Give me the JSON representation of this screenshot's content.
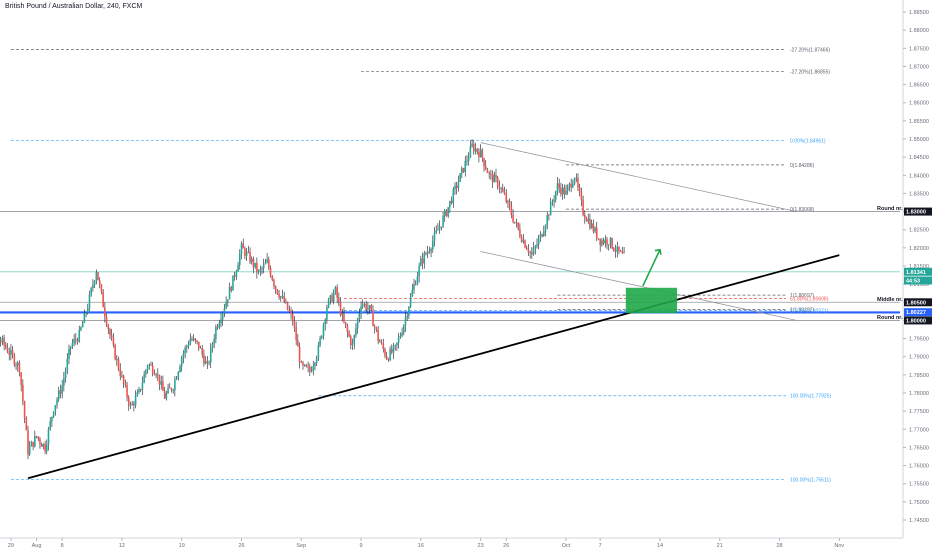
{
  "header": {
    "title": "British Pound / Australian Dollar, 240, FXCM"
  },
  "colors": {
    "up": "#26a69a",
    "down": "#ef5350",
    "wick": "#131722",
    "blue": "#2962ff",
    "fib": "#42a5f5",
    "red": "#ef5350",
    "green": "#26a69a",
    "gray": "#787b86",
    "trend": "#000000",
    "zone": "#1fa84a",
    "arrow": "#1fa84a"
  },
  "chart_data": {
    "type": "candlestick",
    "title": "British Pound / Australian Dollar, 240, FXCM",
    "ylim": [
      1.7404,
      1.8904
    ],
    "y_ticks": [
      "1.88500",
      "1.88000",
      "1.87500",
      "1.87000",
      "1.86500",
      "1.86000",
      "1.85500",
      "1.85000",
      "1.84500",
      "1.84000",
      "1.83500",
      "1.83000",
      "1.82500",
      "1.82000",
      "1.81500",
      "1.81000",
      "1.80500",
      "1.80000",
      "1.79500",
      "1.79000",
      "1.78500",
      "1.78000",
      "1.77500",
      "1.77000",
      "1.76500",
      "1.76000",
      "1.75500",
      "1.75000",
      "1.74500"
    ],
    "y_tick_values": [
      1.885,
      1.88,
      1.875,
      1.87,
      1.865,
      1.86,
      1.855,
      1.85,
      1.845,
      1.84,
      1.835,
      1.83,
      1.825,
      1.82,
      1.815,
      1.81,
      1.805,
      1.8,
      1.795,
      1.79,
      1.785,
      1.78,
      1.775,
      1.77,
      1.765,
      1.76,
      1.755,
      1.75,
      1.745
    ],
    "x_ticks": [
      "29",
      "Aug",
      "8",
      "12",
      "19",
      "26",
      "Sep",
      "9",
      "16",
      "23",
      "26",
      "Oct",
      "7",
      "14",
      "21",
      "28",
      "Nov"
    ],
    "x_tick_days": [
      -2,
      1,
      4,
      11,
      18,
      25,
      32,
      39,
      46,
      53,
      56,
      63,
      67,
      74,
      81,
      88,
      95
    ],
    "price_path": [
      [
        -7,
        1.793
      ],
      [
        -5,
        1.796
      ],
      [
        -3,
        1.794
      ],
      [
        -1,
        1.787
      ],
      [
        0,
        1.764
      ],
      [
        1,
        1.768
      ],
      [
        2,
        1.765
      ],
      [
        3,
        1.776
      ],
      [
        4,
        1.782
      ],
      [
        5,
        1.793
      ],
      [
        6,
        1.796
      ],
      [
        7,
        1.804
      ],
      [
        8,
        1.814
      ],
      [
        9,
        1.802
      ],
      [
        10,
        1.792
      ],
      [
        11,
        1.784
      ],
      [
        12,
        1.776
      ],
      [
        13,
        1.78
      ],
      [
        14,
        1.788
      ],
      [
        15,
        1.786
      ],
      [
        16,
        1.779
      ],
      [
        17,
        1.782
      ],
      [
        18,
        1.79
      ],
      [
        19,
        1.795
      ],
      [
        20,
        1.793
      ],
      [
        21,
        1.787
      ],
      [
        22,
        1.798
      ],
      [
        23,
        1.804
      ],
      [
        24,
        1.811
      ],
      [
        25,
        1.82
      ],
      [
        26,
        1.817
      ],
      [
        27,
        1.813
      ],
      [
        28,
        1.816
      ],
      [
        29,
        1.809
      ],
      [
        30,
        1.805
      ],
      [
        31,
        1.8
      ],
      [
        32,
        1.787
      ],
      [
        33,
        1.786
      ],
      [
        34,
        1.792
      ],
      [
        35,
        1.804
      ],
      [
        36,
        1.808
      ],
      [
        37,
        1.799
      ],
      [
        38,
        1.793
      ],
      [
        39,
        1.805
      ],
      [
        40,
        1.803
      ],
      [
        41,
        1.795
      ],
      [
        42,
        1.79
      ],
      [
        43,
        1.792
      ],
      [
        44,
        1.799
      ],
      [
        45,
        1.808
      ],
      [
        46,
        1.816
      ],
      [
        47,
        1.82
      ],
      [
        48,
        1.825
      ],
      [
        49,
        1.83
      ],
      [
        50,
        1.836
      ],
      [
        51,
        1.842
      ],
      [
        52,
        1.848
      ],
      [
        53,
        1.846
      ],
      [
        54,
        1.84
      ],
      [
        55,
        1.838
      ],
      [
        56,
        1.833
      ],
      [
        57,
        1.827
      ],
      [
        58,
        1.822
      ],
      [
        59,
        1.818
      ],
      [
        60,
        1.823
      ],
      [
        61,
        1.83
      ],
      [
        62,
        1.837
      ],
      [
        63,
        1.835
      ],
      [
        64,
        1.84
      ],
      [
        65,
        1.83
      ],
      [
        66,
        1.826
      ],
      [
        67,
        1.822
      ],
      [
        68,
        1.822
      ],
      [
        69,
        1.819
      ],
      [
        70,
        1.817
      ]
    ],
    "horizontal_lines": [
      {
        "label": "Round nr.",
        "value": 1.83,
        "style": "gray"
      },
      {
        "label": "Middle nr.",
        "value": 1.805,
        "style": "gray"
      },
      {
        "label": "Round nr.",
        "value": 1.8,
        "style": "gray"
      },
      {
        "value": 1.8022,
        "style": "blue-thick"
      },
      {
        "value": 1.8134,
        "style": "green-thin"
      }
    ],
    "fib_levels": [
      {
        "label": "-27.20%(1.87466)",
        "value": 1.87466,
        "from_day": -2,
        "style": "gray"
      },
      {
        "label": "-27.20%(1.86855)",
        "value": 1.86855,
        "from_day": 39,
        "style": "gray"
      },
      {
        "label": "0.00%(1.84961)",
        "value": 1.84961,
        "from_day": -2,
        "style": "blue"
      },
      {
        "label": "0(1.84286)",
        "value": 1.84286,
        "from_day": 63,
        "style": "gray"
      },
      {
        "label": "0(1.83068)",
        "value": 1.83068,
        "from_day": 63,
        "style": "gray"
      },
      {
        "label": "1(1.80697)",
        "value": 1.80697,
        "from_day": 62,
        "style": "gray"
      },
      {
        "label": "61.80%(1.80608)",
        "value": 1.80608,
        "from_day": 37,
        "style": "red"
      },
      {
        "label": "1(1.80297)",
        "value": 1.80297,
        "from_day": 62,
        "style": "gray"
      },
      {
        "label": "50.00%(1.80271)",
        "value": 1.80271,
        "from_day": 37,
        "style": "blue"
      },
      {
        "label": "100.00%(1.77925)",
        "value": 1.77925,
        "from_day": 34,
        "style": "blue"
      },
      {
        "label": "100.00%(1.75611)",
        "value": 1.75611,
        "from_day": -2,
        "style": "blue"
      }
    ],
    "price_badges": [
      {
        "label": "1.83000",
        "value": 1.83,
        "color": "#131722"
      },
      {
        "label": "1.81341",
        "value": 1.81341,
        "color": "#26a69a"
      },
      {
        "label": "44:53",
        "value": 1.811,
        "color": "#26a69a"
      },
      {
        "label": "1.80500",
        "value": 1.805,
        "color": "#131722"
      },
      {
        "label": "1.80227",
        "value": 1.80227,
        "color": "#2962ff"
      },
      {
        "label": "1.80000",
        "value": 1.8,
        "color": "#131722"
      }
    ],
    "trendline": {
      "from": [
        0,
        1.7565
      ],
      "to": [
        95,
        1.818
      ]
    },
    "channel": {
      "upper": [
        [
          53,
          1.849
        ],
        [
          90,
          1.83
        ]
      ],
      "lower": [
        [
          53,
          1.819
        ],
        [
          90,
          1.8
        ]
      ]
    },
    "buy_zone": {
      "x": [
        70,
        76
      ],
      "y": [
        1.802,
        1.809
      ]
    },
    "arrow": {
      "from": [
        72,
        1.8095
      ],
      "to": [
        74,
        1.8195
      ]
    }
  }
}
